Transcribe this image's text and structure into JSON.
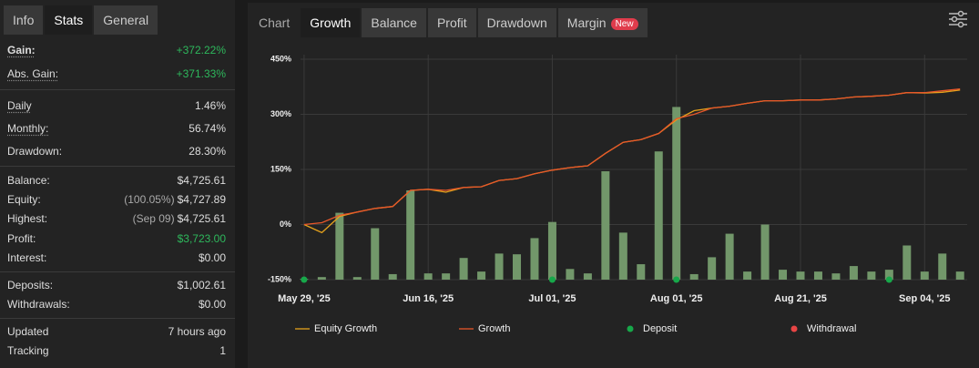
{
  "left_tabs": [
    {
      "label": "Info",
      "active": false
    },
    {
      "label": "Stats",
      "active": true
    },
    {
      "label": "General",
      "active": false
    }
  ],
  "stats": {
    "groups": [
      {
        "rows": [
          {
            "label": "Gain:",
            "value": "+372.22%",
            "color": "#2eb85c",
            "underlined": true,
            "bold": true
          },
          {
            "label": "Abs. Gain:",
            "value": "+371.33%",
            "color": "#2eb85c",
            "underlined": true
          }
        ]
      },
      {
        "rows": [
          {
            "label": "Daily",
            "value": "1.46%",
            "underlined": true
          },
          {
            "label": "Monthly:",
            "value": "56.74%",
            "underlined": true
          },
          {
            "label": "Drawdown:",
            "value": "28.30%"
          }
        ]
      },
      {
        "rows": [
          {
            "label": "Balance:",
            "value": "$4,725.61"
          },
          {
            "label": "Equity:",
            "note": "(100.05%)",
            "value": "$4,727.89"
          },
          {
            "label": "Highest:",
            "note": "(Sep 09)",
            "value": "$4,725.61"
          },
          {
            "label": "Profit:",
            "value": "$3,723.00",
            "color": "#2eb85c"
          },
          {
            "label": "Interest:",
            "value": "$0.00"
          }
        ]
      },
      {
        "rows": [
          {
            "label": "Deposits:",
            "value": "$1,002.61"
          },
          {
            "label": "Withdrawals:",
            "value": "$0.00"
          }
        ]
      },
      {
        "rows": [
          {
            "label": "Updated",
            "value": "7 hours ago"
          },
          {
            "label": "Tracking",
            "value": "1"
          }
        ]
      }
    ]
  },
  "chart_tabs": [
    {
      "label": "Chart",
      "active": false,
      "plain": true
    },
    {
      "label": "Growth",
      "active": true
    },
    {
      "label": "Balance",
      "active": false
    },
    {
      "label": "Profit",
      "active": false
    },
    {
      "label": "Drawdown",
      "active": false
    },
    {
      "label": "Margin",
      "active": false,
      "badge": "New"
    }
  ],
  "chart_data": {
    "type": "combo",
    "categories": [
      "May 29, '25",
      null,
      null,
      null,
      null,
      null,
      null,
      "Jun 16, '25",
      null,
      null,
      null,
      null,
      null,
      null,
      "Jul 01, '25",
      null,
      null,
      null,
      null,
      null,
      null,
      "Aug 01, '25",
      null,
      null,
      null,
      null,
      null,
      null,
      "Aug 21, '25",
      null,
      null,
      null,
      null,
      null,
      null,
      "Sep 04, '25",
      null,
      null
    ],
    "ylim": [
      -150,
      450
    ],
    "yticks": [
      {
        "value": -150,
        "label": "-150%"
      },
      {
        "value": 0,
        "label": "0%"
      },
      {
        "value": 150,
        "label": "150%"
      },
      {
        "value": 300,
        "label": "300%"
      },
      {
        "value": 450,
        "label": "450%"
      }
    ],
    "grid": true,
    "series": [
      {
        "type": "bar",
        "color": "#72976a",
        "values": [
          -148,
          -143,
          32,
          -143,
          -10,
          -135,
          93,
          -133,
          -133,
          -91,
          -128,
          -79,
          -81,
          -37,
          7,
          -121,
          -133,
          145,
          -22,
          -108,
          199,
          320,
          -135,
          -89,
          -25,
          -128,
          0,
          -123,
          -128,
          -128,
          -133,
          -113,
          -128,
          -123,
          -57,
          -128,
          -79,
          -128
        ]
      },
      {
        "name": "Equity Growth",
        "type": "line",
        "color": "#e5a21c",
        "values": [
          0,
          -22,
          22,
          34,
          44,
          49,
          93,
          96,
          88,
          101,
          103,
          120,
          125,
          138,
          148,
          155,
          160,
          194,
          224,
          231,
          248,
          285,
          310,
          317,
          322,
          330,
          337,
          337,
          339,
          339,
          342,
          347,
          349,
          352,
          359,
          358,
          360,
          366
        ]
      },
      {
        "name": "Growth",
        "type": "line",
        "color": "#e8572a",
        "values": [
          0,
          5,
          25,
          34,
          44,
          49,
          93,
          96,
          93,
          101,
          103,
          120,
          125,
          138,
          148,
          155,
          160,
          194,
          224,
          231,
          248,
          288,
          300,
          317,
          322,
          330,
          337,
          337,
          339,
          339,
          342,
          347,
          349,
          352,
          359,
          359,
          364,
          369
        ]
      },
      {
        "name": "Deposit",
        "type": "marker",
        "color": "#17a84a",
        "values": [
          -150,
          null,
          null,
          null,
          null,
          null,
          null,
          null,
          null,
          null,
          null,
          null,
          null,
          null,
          -150,
          null,
          null,
          null,
          null,
          null,
          null,
          -150,
          null,
          null,
          null,
          null,
          null,
          null,
          null,
          null,
          null,
          null,
          null,
          -150,
          null,
          null,
          null,
          null
        ]
      },
      {
        "name": "Withdrawal",
        "type": "marker",
        "color": "#e84545",
        "values": [
          null,
          null,
          null,
          null,
          null,
          null,
          null,
          null,
          null,
          null,
          null,
          null,
          null,
          null,
          null,
          null,
          null,
          null,
          null,
          null,
          null,
          null,
          null,
          null,
          null,
          null,
          null,
          null,
          null,
          null,
          null,
          null,
          null,
          null,
          null,
          null,
          null,
          null
        ]
      }
    ]
  }
}
